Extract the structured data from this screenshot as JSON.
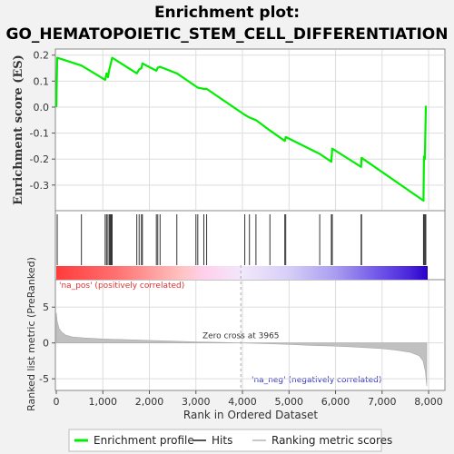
{
  "title_line1": "Enrichment plot:",
  "title_line2": "GO_HEMATOPOIETIC_STEM_CELL_DIFFERENTIATION",
  "chart_data": [
    {
      "type": "line",
      "name": "enrichment-score-panel",
      "ylabel": "Enrichment score (ES)",
      "ylim": [
        -0.395,
        0.22
      ],
      "xlim": [
        0,
        8000
      ],
      "yticks": [
        0.2,
        0.1,
        0.0,
        -0.1,
        -0.2,
        -0.3
      ],
      "ytick_labels": [
        "0.2",
        "0.1",
        "0.0",
        "-0.1",
        "-0.2",
        "-0.3"
      ],
      "grid": true,
      "series": [
        {
          "name": "Enrichment profile",
          "color": "#00ee00",
          "x": [
            0,
            20,
            540,
            1050,
            1080,
            1110,
            1140,
            1160,
            1180,
            1200,
            1730,
            1780,
            1830,
            1850,
            2150,
            2180,
            2230,
            2590,
            3000,
            3040,
            3170,
            3230,
            4050,
            4150,
            4290,
            4590,
            4910,
            4930,
            5660,
            5910,
            5930,
            6550,
            6560,
            7890,
            7900,
            7920,
            7940
          ],
          "y": [
            0.0,
            0.19,
            0.16,
            0.105,
            0.13,
            0.115,
            0.145,
            0.16,
            0.175,
            0.19,
            0.13,
            0.145,
            0.15,
            0.168,
            0.14,
            0.152,
            0.155,
            0.13,
            0.08,
            0.075,
            0.07,
            0.07,
            -0.03,
            -0.04,
            -0.05,
            -0.09,
            -0.13,
            -0.115,
            -0.18,
            -0.21,
            -0.16,
            -0.23,
            -0.195,
            -0.36,
            -0.19,
            -0.2,
            0.005
          ]
        }
      ]
    },
    {
      "type": "scatter",
      "name": "hits-panel",
      "hits": [
        20,
        540,
        1050,
        1080,
        1110,
        1140,
        1160,
        1180,
        1200,
        1730,
        1780,
        1830,
        1850,
        2150,
        2180,
        2230,
        2590,
        3000,
        3040,
        3170,
        3230,
        4050,
        4150,
        4290,
        4590,
        4910,
        4930,
        5660,
        5910,
        5930,
        6550,
        6560,
        7890,
        7900,
        7920,
        7940
      ],
      "bar_label_pos": "'na_pos' (positively correlated)",
      "bar_label_neg": "'na_neg' (negatively correlated)"
    },
    {
      "type": "area",
      "name": "ranked-metric-panel",
      "ylabel": "Ranked list metric (PreRanked)",
      "xlabel": "Rank in Ordered Dataset",
      "ylim": [
        -6.5,
        8.7
      ],
      "yticks": [
        5,
        0,
        -5
      ],
      "ytick_labels": [
        "5",
        "0",
        "-5"
      ],
      "xticks": [
        0,
        1000,
        2000,
        3000,
        4000,
        5000,
        6000,
        7000,
        8000
      ],
      "xtick_labels": [
        "0",
        "1,000",
        "2,000",
        "3,000",
        "4,000",
        "5,000",
        "6,000",
        "7,000",
        "8,000"
      ],
      "zero_cross": 3965,
      "zero_cross_label": "Zero cross at 3965",
      "series": [
        {
          "name": "Ranking metric scores",
          "color": "#c0c0c0",
          "x": [
            0,
            20,
            60,
            120,
            200,
            350,
            600,
            1000,
            1500,
            2000,
            2500,
            3000,
            3500,
            3965,
            4500,
            5000,
            5500,
            6000,
            6500,
            7000,
            7300,
            7600,
            7800,
            7880,
            7930,
            7960
          ],
          "y": [
            4.2,
            3.0,
            2.0,
            1.5,
            1.1,
            0.85,
            0.7,
            0.55,
            0.45,
            0.35,
            0.25,
            0.15,
            0.07,
            0.0,
            -0.1,
            -0.2,
            -0.35,
            -0.45,
            -0.6,
            -0.8,
            -1.0,
            -1.3,
            -1.8,
            -2.5,
            -4.0,
            -6.0
          ]
        }
      ]
    }
  ],
  "legend": {
    "items": [
      {
        "label": "Enrichment profile",
        "color": "#00ee00"
      },
      {
        "label": "Hits",
        "color": "#555555"
      },
      {
        "label": "Ranking metric scores",
        "color": "#c8c8c8"
      }
    ]
  }
}
